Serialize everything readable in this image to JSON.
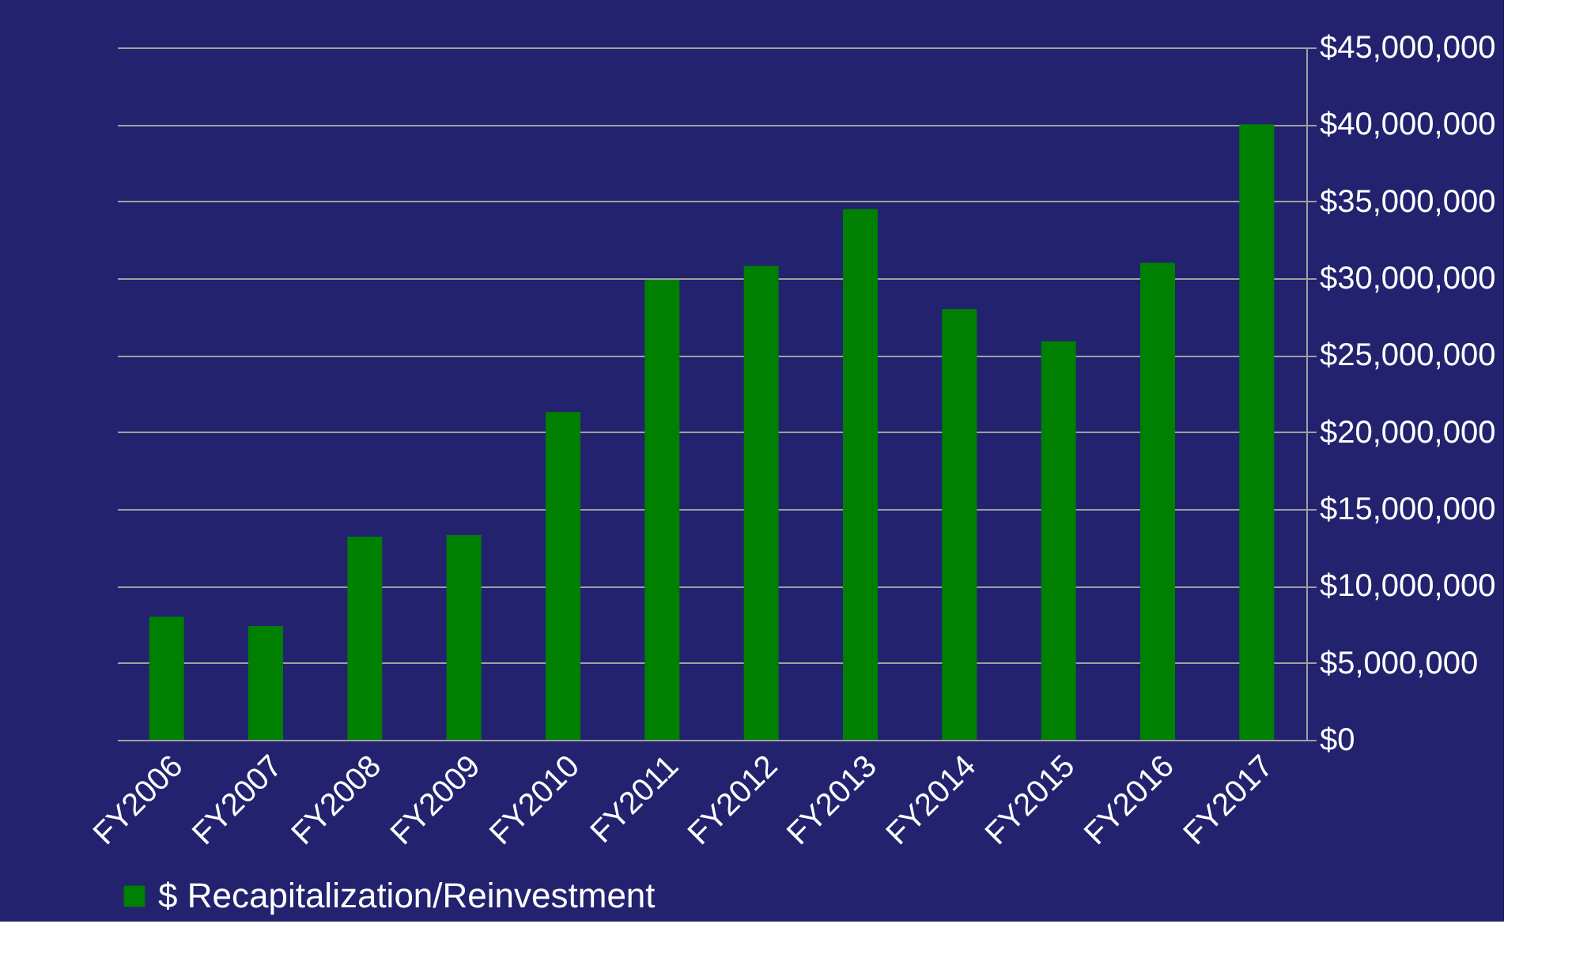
{
  "chart_data": {
    "type": "bar",
    "categories": [
      "FY2006",
      "FY2007",
      "FY2008",
      "FY2009",
      "FY2010",
      "FY2011",
      "FY2012",
      "FY2013",
      "FY2014",
      "FY2015",
      "FY2016",
      "FY2017"
    ],
    "series": [
      {
        "name": "$ Recapitalization/Reinvestment",
        "color": "#008000",
        "values": [
          8000000,
          7400000,
          13200000,
          13300000,
          21300000,
          29900000,
          30800000,
          34500000,
          28000000,
          25900000,
          31000000,
          40000000
        ]
      }
    ],
    "ylim": [
      0,
      45000000
    ],
    "yticks": [
      {
        "value": 0,
        "label": "$0"
      },
      {
        "value": 5000000,
        "label": "$5,000,000"
      },
      {
        "value": 10000000,
        "label": "$10,000,000"
      },
      {
        "value": 15000000,
        "label": "$15,000,000"
      },
      {
        "value": 20000000,
        "label": "$20,000,000"
      },
      {
        "value": 25000000,
        "label": "$25,000,000"
      },
      {
        "value": 30000000,
        "label": "$30,000,000"
      },
      {
        "value": 35000000,
        "label": "$35,000,000"
      },
      {
        "value": 40000000,
        "label": "$40,000,000"
      },
      {
        "value": 45000000,
        "label": "$45,000,000"
      }
    ],
    "grid": "y",
    "legend": "bottom"
  }
}
